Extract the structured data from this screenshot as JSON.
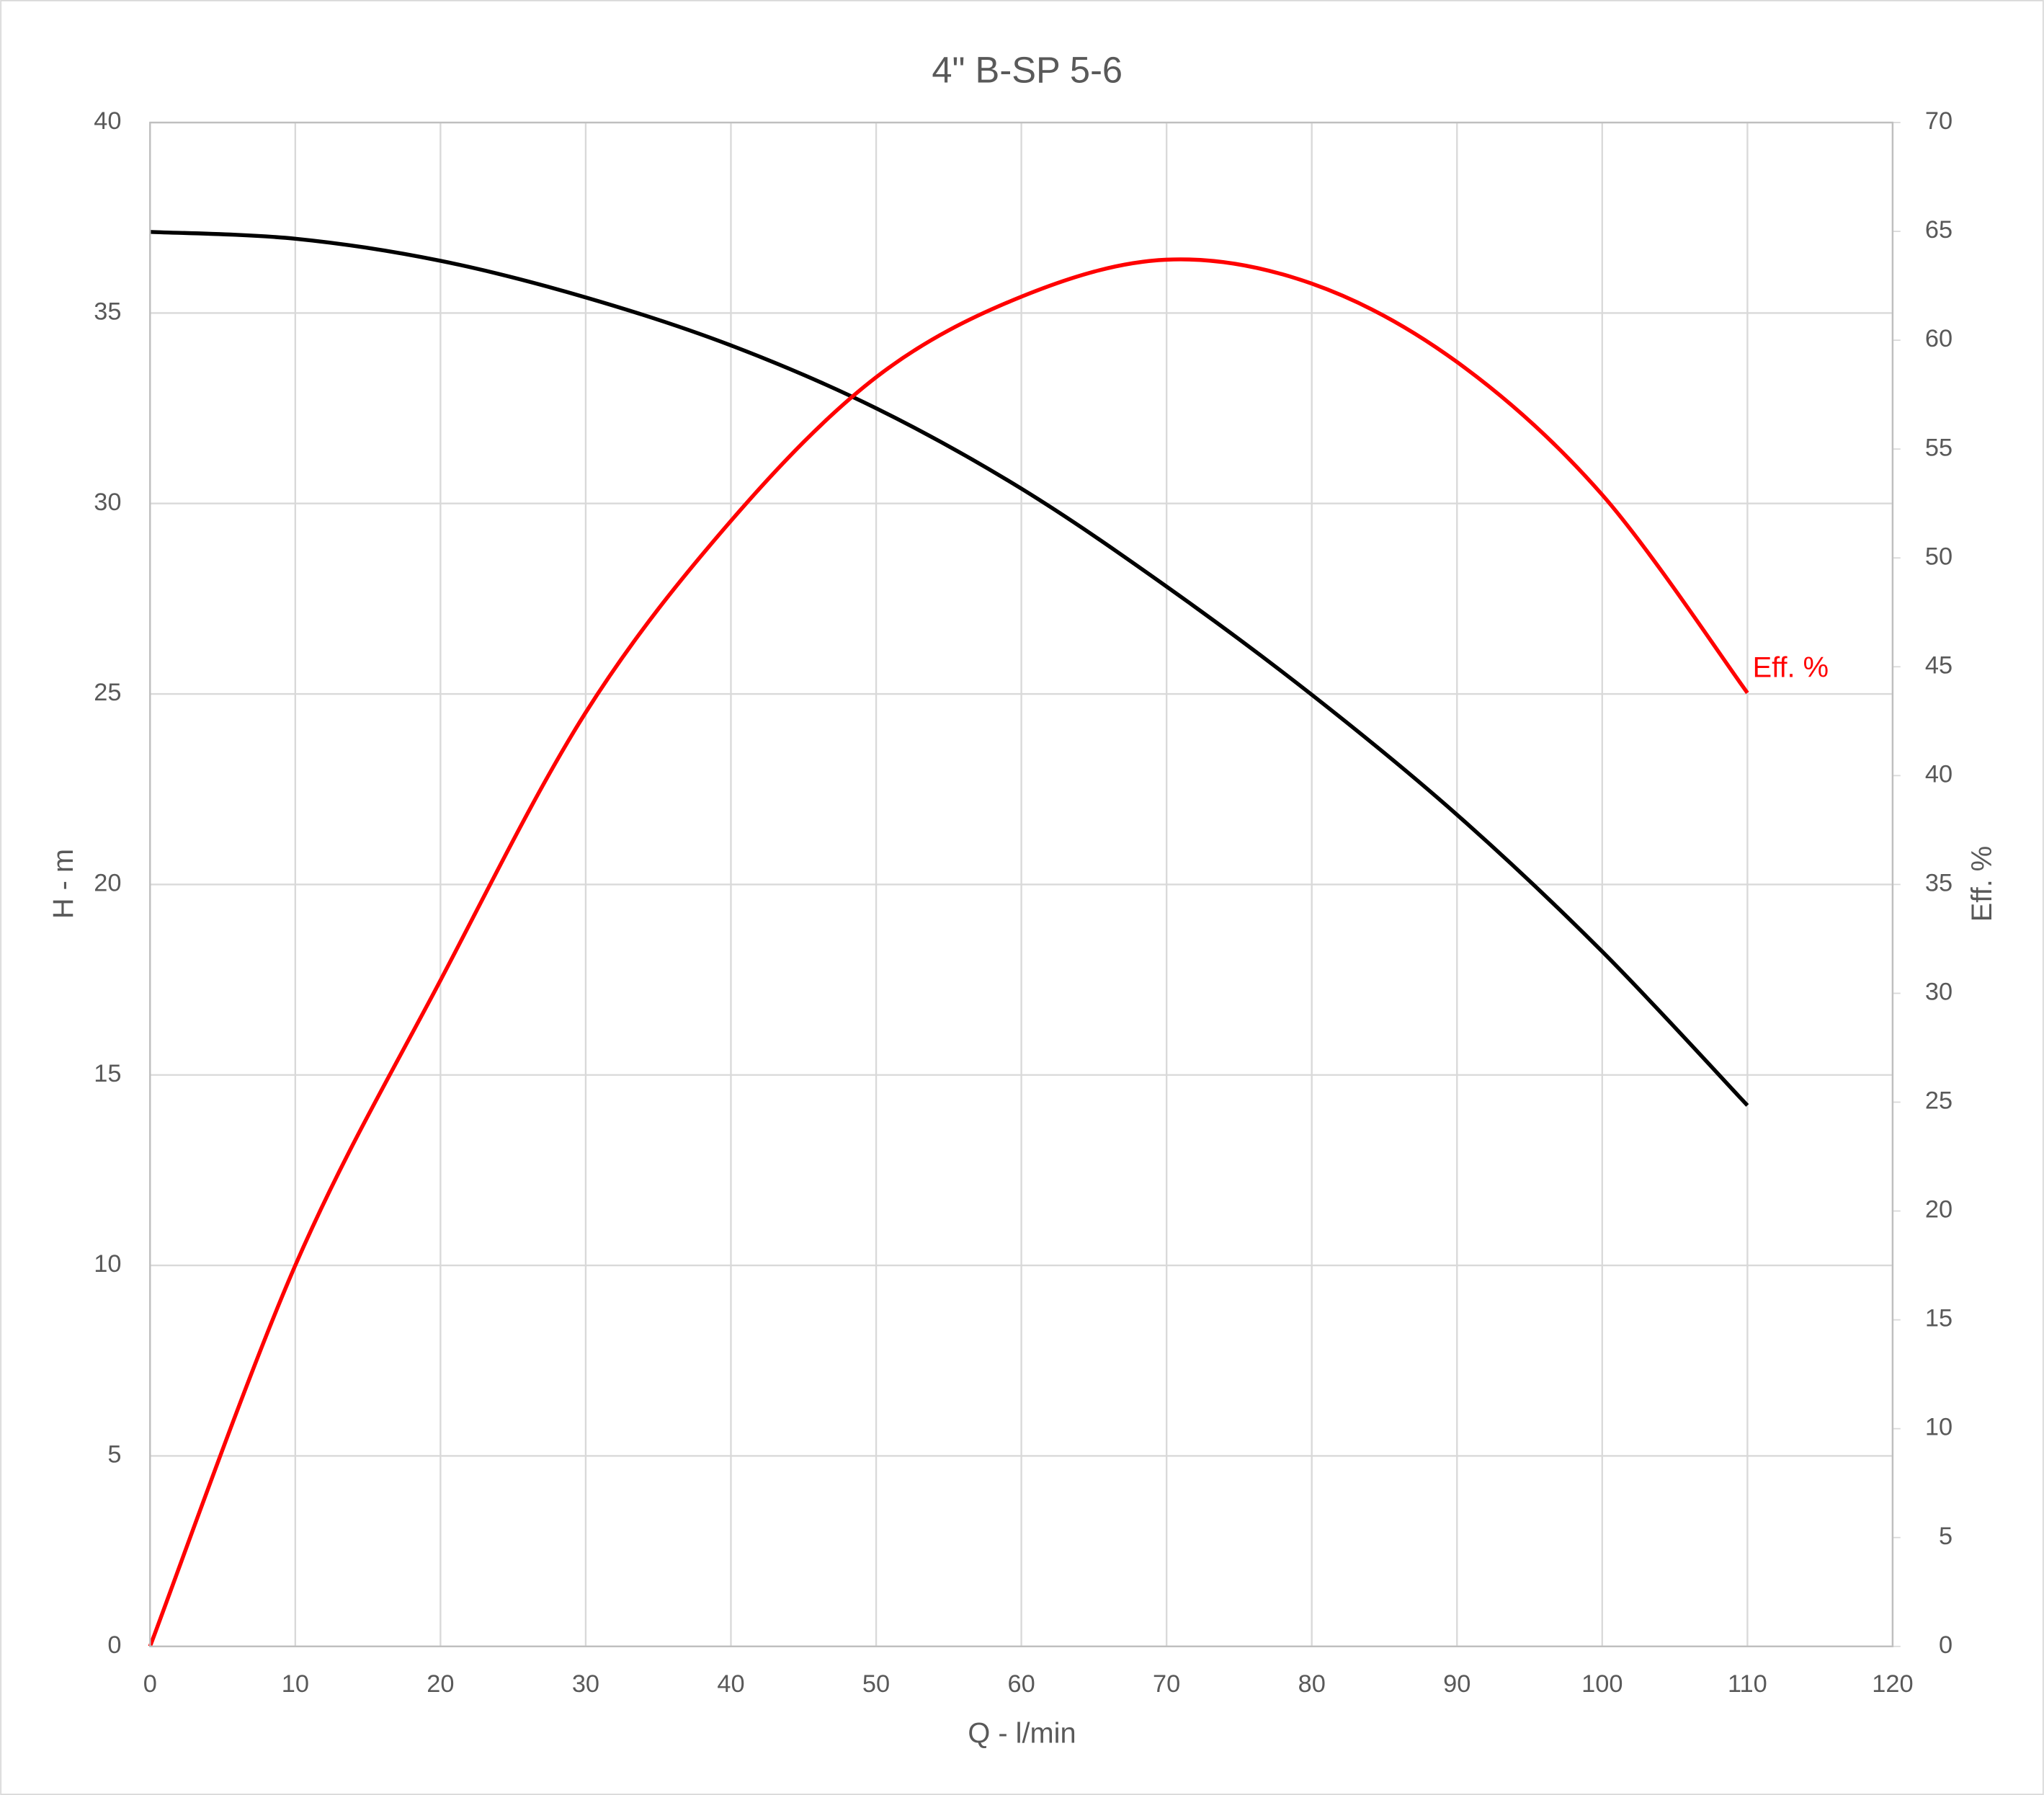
{
  "chart_data": {
    "type": "line",
    "title": "4\" B-SP 5-6",
    "x_label": "Q - l/min",
    "y_label": "H - m",
    "y2_label": "Eff. %",
    "x": [
      0,
      10,
      20,
      30,
      40,
      50,
      60,
      70,
      80,
      90,
      100,
      110
    ],
    "series": [
      {
        "color": "#000000",
        "values": [
          37.13,
          36.95,
          36.37,
          35.41,
          34.15,
          32.5,
          30.39,
          27.82,
          24.98,
          21.83,
          18.24,
          14.2
        ]
      },
      {
        "name": "Eff. %",
        "color": "#ff0000",
        "axis": "y2",
        "values": [
          0,
          17.5,
          30.6,
          42.9,
          51.7,
          58.3,
          62.0,
          63.7,
          62.6,
          59.0,
          52.9,
          43.8
        ]
      }
    ],
    "xlim": [
      0,
      120
    ],
    "xticks": [
      0,
      10,
      20,
      30,
      40,
      50,
      60,
      70,
      80,
      90,
      100,
      110,
      120
    ],
    "ylim": [
      0,
      40
    ],
    "yticks": [
      0,
      5,
      10,
      15,
      20,
      25,
      30,
      35,
      40
    ],
    "y2lim": [
      0,
      70
    ],
    "y2ticks": [
      0,
      5,
      10,
      15,
      20,
      25,
      30,
      35,
      40,
      45,
      50,
      55,
      60,
      65,
      70
    ],
    "grid": true
  }
}
